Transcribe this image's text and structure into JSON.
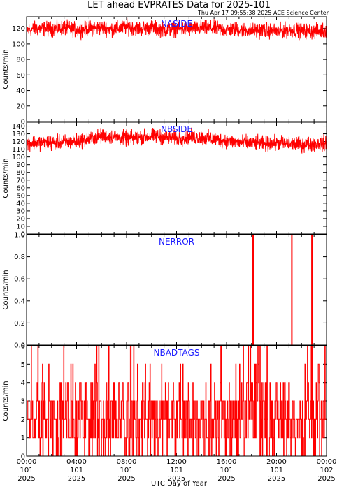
{
  "header": {
    "title": "LET ahead EVPRATES Data for 2025-101",
    "timestamp": "Thu Apr 17 09:55:38 2025 ACE Science Center"
  },
  "x_axis": {
    "label": "UTC Day of Year",
    "ticks": [
      {
        "hours": 0,
        "time": "00:00",
        "doy": "101",
        "year": "2025"
      },
      {
        "hours": 4,
        "time": "04:00",
        "doy": "101",
        "year": "2025"
      },
      {
        "hours": 8,
        "time": "08:00",
        "doy": "101",
        "year": "2025"
      },
      {
        "hours": 12,
        "time": "12:00",
        "doy": "101",
        "year": "2025"
      },
      {
        "hours": 16,
        "time": "16:00",
        "doy": "101",
        "year": "2025"
      },
      {
        "hours": 20,
        "time": "20:00",
        "doy": "101",
        "year": "2025"
      },
      {
        "hours": 24,
        "time": "00:00",
        "doy": "102",
        "year": "2025"
      }
    ],
    "xlim_hours": [
      0,
      24
    ]
  },
  "colors": {
    "trace": "#ff0000",
    "panel_label": "#1a1aff",
    "frame": "#000000"
  },
  "chart_data": [
    {
      "type": "line",
      "panel_label": "NASIDE",
      "ylabel": "Counts/min",
      "ylim": [
        0,
        135
      ],
      "yticks": [
        0,
        20,
        40,
        60,
        80,
        100,
        120
      ],
      "x_hours": [
        0,
        1,
        2,
        3,
        4,
        5,
        6,
        7,
        8,
        9,
        10,
        11,
        12,
        13,
        14,
        15,
        16,
        17,
        18,
        19,
        20,
        21,
        22,
        23,
        24
      ],
      "values": [
        118,
        120,
        119,
        121,
        118,
        120,
        121,
        119,
        122,
        120,
        121,
        118,
        120,
        119,
        121,
        120,
        118,
        119,
        117,
        118,
        116,
        118,
        117,
        116,
        118
      ],
      "spread": 8
    },
    {
      "type": "line",
      "panel_label": "NBSIDE",
      "ylabel": "Counts/min",
      "ylim": [
        0,
        145
      ],
      "yticks": [
        0,
        10,
        20,
        30,
        40,
        50,
        60,
        70,
        80,
        90,
        100,
        110,
        120,
        130,
        140
      ],
      "x_hours": [
        0,
        1,
        2,
        3,
        4,
        5,
        6,
        7,
        8,
        9,
        10,
        11,
        12,
        13,
        14,
        15,
        16,
        17,
        18,
        19,
        20,
        21,
        22,
        23,
        24
      ],
      "values": [
        118,
        119,
        118,
        119,
        120,
        123,
        127,
        126,
        124,
        125,
        127,
        126,
        124,
        126,
        125,
        123,
        121,
        119,
        118,
        117,
        118,
        117,
        116,
        117,
        118
      ],
      "spread": 8
    },
    {
      "type": "line",
      "panel_label": "NERROR",
      "ylabel": "Counts/min",
      "ylim": [
        0,
        1.0
      ],
      "yticks": [
        0.0,
        0.2,
        0.4,
        0.6,
        0.8,
        1.0
      ],
      "baseline": 0,
      "spikes": [
        {
          "start_hours": 18.1,
          "end_hours": 18.1,
          "value": 1
        },
        {
          "start_hours": 21.2,
          "end_hours": 21.2,
          "value": 1
        },
        {
          "start_hours": 22.8,
          "end_hours": 22.8,
          "value": 1
        }
      ]
    },
    {
      "type": "line",
      "panel_label": "NBADTAGS",
      "ylabel": "Counts/min",
      "ylim": [
        0,
        6
      ],
      "yticks": [
        0,
        1,
        2,
        3,
        4,
        5,
        6
      ],
      "discrete": true,
      "typical_range": [
        0,
        4
      ],
      "max_value": 6
    }
  ]
}
